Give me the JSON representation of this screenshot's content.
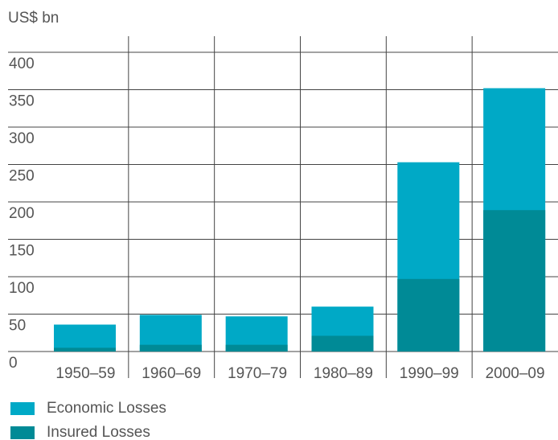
{
  "chart_data": {
    "type": "bar",
    "title": "US$ bn",
    "categories": [
      "1950–59",
      "1960–69",
      "1970–79",
      "1980–89",
      "1990–99",
      "2000–09"
    ],
    "series": [
      {
        "name": "Economic Losses",
        "color": "#00a9c6",
        "values": [
          36,
          49,
          47,
          60,
          253,
          352
        ]
      },
      {
        "name": "Insured Losses",
        "color": "#008a96",
        "values": [
          5,
          9,
          9,
          21,
          97,
          189
        ]
      }
    ],
    "ylim": [
      0,
      400
    ],
    "yticks": [
      0,
      50,
      100,
      150,
      200,
      250,
      300,
      350,
      400
    ],
    "grid": true
  }
}
